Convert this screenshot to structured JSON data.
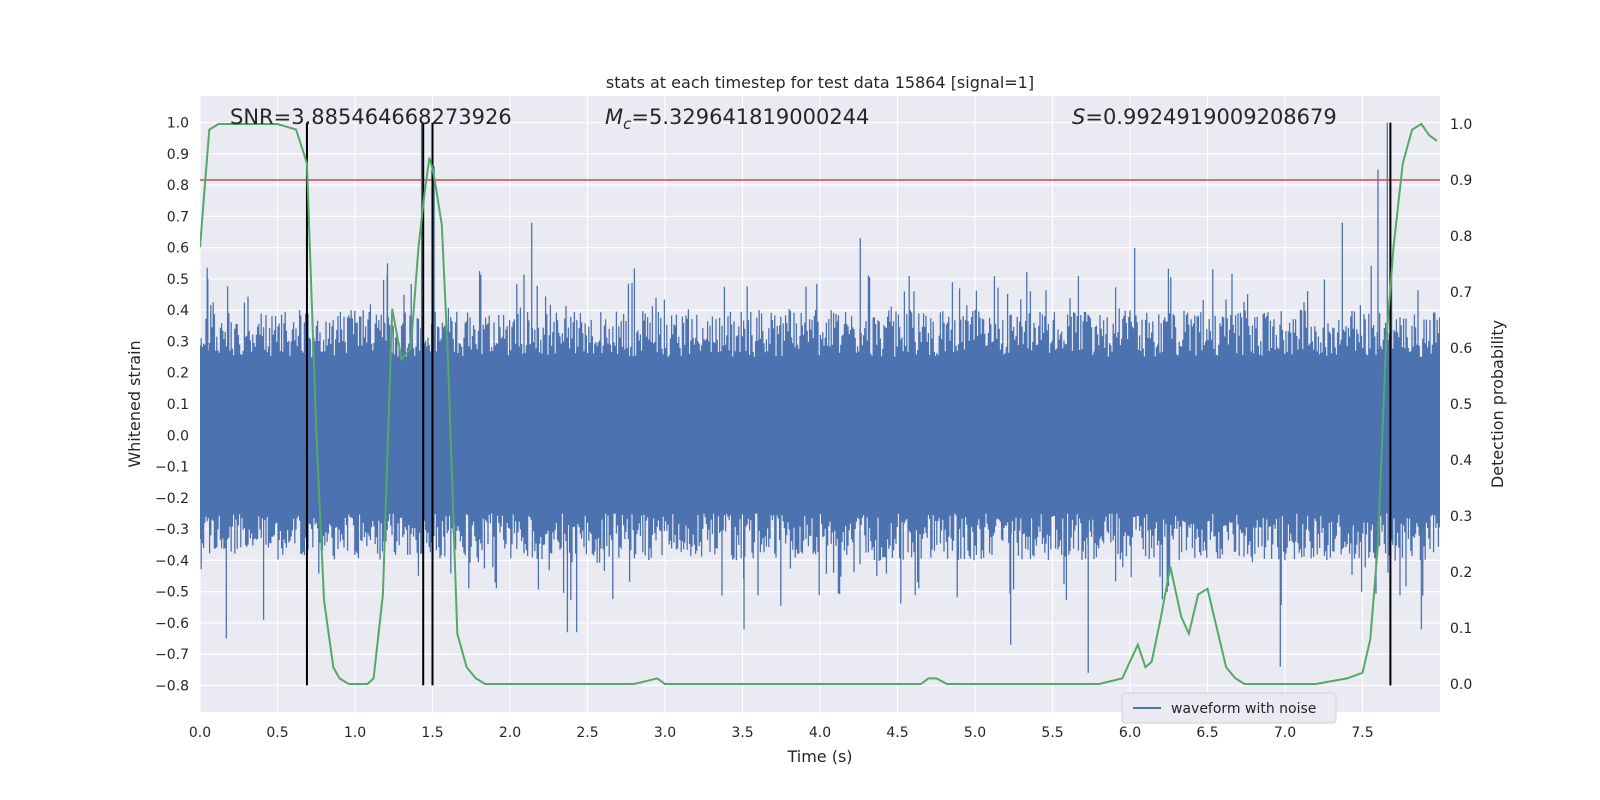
{
  "chart_data": {
    "type": "line",
    "title": "stats at each timestep for test data 15864 [signal=1]",
    "xlabel": "Time (s)",
    "ylabel_left": "Whitened strain",
    "ylabel_right": "Detection probability",
    "xlim": [
      0.0,
      8.0
    ],
    "ylim_left": [
      -0.885,
      1.085
    ],
    "ylim_right": [
      -0.05,
      1.05
    ],
    "x_ticks": [
      "0.0",
      "0.5",
      "1.0",
      "1.5",
      "2.0",
      "2.5",
      "3.0",
      "3.5",
      "4.0",
      "4.5",
      "5.0",
      "5.5",
      "6.0",
      "6.5",
      "7.0",
      "7.5"
    ],
    "x_tick_values": [
      0,
      0.5,
      1,
      1.5,
      2,
      2.5,
      3,
      3.5,
      4,
      4.5,
      5,
      5.5,
      6,
      6.5,
      7,
      7.5
    ],
    "y_left_ticks": [
      "−0.8",
      "−0.7",
      "−0.6",
      "−0.5",
      "−0.4",
      "−0.3",
      "−0.2",
      "−0.1",
      "0.0",
      "0.1",
      "0.2",
      "0.3",
      "0.4",
      "0.5",
      "0.6",
      "0.7",
      "0.8",
      "0.9",
      "1.0"
    ],
    "y_left_tick_values": [
      -0.8,
      -0.7,
      -0.6,
      -0.5,
      -0.4,
      -0.3,
      -0.2,
      -0.1,
      0,
      0.1,
      0.2,
      0.3,
      0.4,
      0.5,
      0.6,
      0.7,
      0.8,
      0.9,
      1.0
    ],
    "y_right_ticks": [
      "0.0",
      "0.1",
      "0.2",
      "0.3",
      "0.4",
      "0.5",
      "0.6",
      "0.7",
      "0.8",
      "0.9",
      "1.0"
    ],
    "y_right_tick_values": [
      0,
      0.1,
      0.2,
      0.3,
      0.4,
      0.5,
      0.6,
      0.7,
      0.8,
      0.9,
      1.0
    ],
    "grid": true,
    "annotations": {
      "snr": "SNR=3.885464668273926",
      "mc_value": "=5.329641819000244",
      "s_value": "=0.9924919009208679"
    },
    "legend": {
      "position": "bottom-right",
      "entries": [
        "waveform with noise"
      ]
    },
    "threshold_line": {
      "axis": "right",
      "value": 0.9,
      "color": "#c44e52"
    },
    "vertical_lines": [
      0.69,
      1.44,
      1.5,
      7.68
    ],
    "series": [
      {
        "name": "waveform with noise",
        "axis": "left",
        "color": "#4c72b0",
        "noise_envelope": {
          "typical_abs": 0.3,
          "peak_abs": 0.6
        },
        "peaks": [
          {
            "x": 0.05,
            "y": 0.5
          },
          {
            "x": 0.17,
            "y": -0.65
          },
          {
            "x": 0.41,
            "y": -0.59
          },
          {
            "x": 1.21,
            "y": 0.55
          },
          {
            "x": 1.43,
            "y": 1.0
          },
          {
            "x": 1.51,
            "y": 0.86
          },
          {
            "x": 2.14,
            "y": 0.68
          },
          {
            "x": 2.37,
            "y": -0.63
          },
          {
            "x": 2.43,
            "y": -0.63
          },
          {
            "x": 3.51,
            "y": -0.62
          },
          {
            "x": 4.26,
            "y": 0.63
          },
          {
            "x": 5.23,
            "y": -0.67
          },
          {
            "x": 5.73,
            "y": -0.76
          },
          {
            "x": 6.03,
            "y": 0.6
          },
          {
            "x": 6.97,
            "y": -0.74
          },
          {
            "x": 7.37,
            "y": 0.68
          },
          {
            "x": 7.6,
            "y": 0.85
          },
          {
            "x": 7.66,
            "y": 1.0
          },
          {
            "x": 7.88,
            "y": -0.62
          }
        ]
      },
      {
        "name": "",
        "axis": "right",
        "color": "#55a868",
        "x": [
          0.0,
          0.06,
          0.12,
          0.2,
          0.3,
          0.4,
          0.5,
          0.62,
          0.69,
          0.75,
          0.8,
          0.82,
          0.86,
          0.9,
          0.96,
          1.02,
          1.08,
          1.12,
          1.18,
          1.24,
          1.3,
          1.36,
          1.41,
          1.45,
          1.48,
          1.5,
          1.52,
          1.56,
          1.6,
          1.66,
          1.72,
          1.78,
          1.84,
          1.9,
          2.0,
          2.2,
          2.5,
          2.8,
          2.95,
          3.0,
          3.3,
          3.6,
          3.8,
          4.0,
          4.2,
          4.5,
          4.6,
          4.65,
          4.7,
          4.75,
          4.82,
          4.9,
          5.0,
          5.2,
          5.5,
          5.8,
          5.95,
          6.0,
          6.05,
          6.1,
          6.14,
          6.2,
          6.26,
          6.33,
          6.38,
          6.44,
          6.5,
          6.56,
          6.62,
          6.68,
          6.74,
          6.8,
          6.86,
          6.92,
          7.0,
          7.2,
          7.4,
          7.5,
          7.55,
          7.6,
          7.65,
          7.7,
          7.76,
          7.82,
          7.88,
          7.93,
          7.98
        ],
        "y": [
          0.78,
          0.99,
          1.0,
          1.0,
          1.0,
          1.0,
          1.0,
          0.99,
          0.93,
          0.45,
          0.15,
          0.11,
          0.03,
          0.01,
          0.0,
          0.0,
          0.0,
          0.01,
          0.16,
          0.67,
          0.58,
          0.6,
          0.78,
          0.88,
          0.94,
          0.92,
          0.89,
          0.82,
          0.58,
          0.09,
          0.03,
          0.01,
          0.0,
          0.0,
          0.0,
          0.0,
          0.0,
          0.0,
          0.01,
          0.0,
          0.0,
          0.0,
          0.0,
          0.0,
          0.0,
          0.0,
          0.0,
          0.0,
          0.01,
          0.01,
          0.0,
          0.0,
          0.0,
          0.0,
          0.0,
          0.0,
          0.01,
          0.04,
          0.07,
          0.03,
          0.04,
          0.12,
          0.21,
          0.12,
          0.09,
          0.16,
          0.17,
          0.1,
          0.03,
          0.01,
          0.0,
          0.0,
          0.0,
          0.0,
          0.0,
          0.0,
          0.01,
          0.02,
          0.08,
          0.25,
          0.6,
          0.78,
          0.93,
          0.99,
          1.0,
          0.98,
          0.97
        ]
      }
    ]
  }
}
